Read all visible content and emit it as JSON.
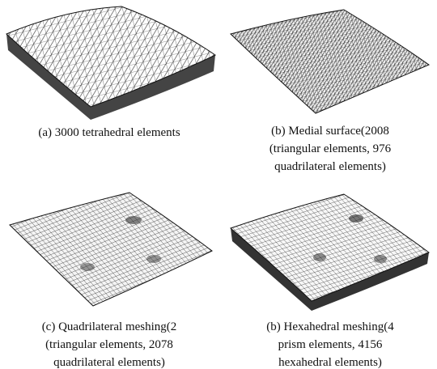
{
  "figure": {
    "panels": [
      {
        "caption": [
          "(a) 3000 tetrahedral elements"
        ]
      },
      {
        "caption": [
          "(b) Medial surface(2008",
          "(triangular elements, 976",
          "quadrilateral elements)"
        ]
      },
      {
        "caption": [
          "(c) Quadrilateral meshing(2",
          "(triangular elements, 2078",
          "quadrilateral elements)"
        ]
      },
      {
        "caption": [
          "(b) Hexahedral meshing(4",
          "prism elements, 4156",
          "hexahedral elements)"
        ]
      }
    ]
  }
}
